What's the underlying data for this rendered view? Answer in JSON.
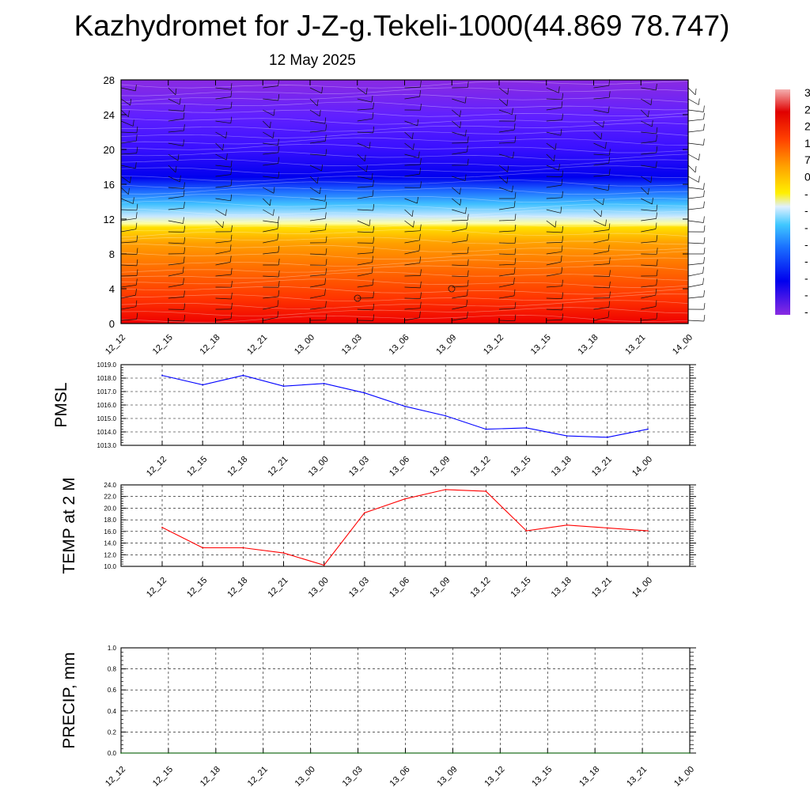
{
  "page": {
    "title": "Kazhydromet for J-Z-g.Tekeli-1000(44.869 78.747)",
    "subtitle": "12 May 2025"
  },
  "chart_data": [
    {
      "type": "heatmap",
      "title": "",
      "x_tick_labels": [
        "12_12",
        "12_15",
        "12_18",
        "12_21",
        "13_00",
        "13_03",
        "13_06",
        "13_09",
        "13_12",
        "13_15",
        "13_18",
        "13_21",
        "14_00"
      ],
      "y_tick_labels": [
        "0",
        "4",
        "8",
        "12",
        "16",
        "20",
        "24",
        "28"
      ],
      "ylim": [
        0,
        28
      ],
      "colorbar_visible_labels": [
        "3",
        "2",
        "2",
        "1",
        "7",
        "0",
        "-",
        "-",
        "-",
        "-",
        "-",
        "-",
        "-",
        "-"
      ],
      "overlay": "wind barbs"
    },
    {
      "type": "line",
      "ylabel": "PMSL",
      "x": [
        "12_12",
        "12_15",
        "12_18",
        "12_21",
        "13_00",
        "13_03",
        "13_06",
        "13_09",
        "13_12",
        "13_15",
        "13_18",
        "13_21",
        "14_00"
      ],
      "values": [
        1018.2,
        1017.5,
        1018.2,
        1017.4,
        1017.6,
        1016.9,
        1015.9,
        1015.2,
        1014.2,
        1014.3,
        1013.7,
        1013.6,
        1014.2
      ],
      "ylim": [
        1013.0,
        1019.0
      ],
      "y_tick_labels": [
        "1013.0",
        "1014.0",
        "1015.0",
        "1016.0",
        "1017.0",
        "1018.0",
        "1019.0"
      ],
      "color": "#0000ff",
      "grid": true
    },
    {
      "type": "line",
      "ylabel": "TEMP at 2 M",
      "x": [
        "12_12",
        "12_15",
        "12_18",
        "12_21",
        "13_00",
        "13_03",
        "13_06",
        "13_09",
        "13_12",
        "13_15",
        "13_18",
        "13_21",
        "14_00"
      ],
      "values": [
        16.7,
        13.2,
        13.2,
        12.3,
        10.2,
        19.2,
        21.6,
        23.2,
        22.9,
        16.1,
        17.1,
        16.6,
        16.1
      ],
      "ylim": [
        10.0,
        24.0
      ],
      "y_tick_labels": [
        "10.0",
        "12.0",
        "14.0",
        "16.0",
        "18.0",
        "20.0",
        "22.0",
        "24.0"
      ],
      "color": "#ff0000",
      "grid": true
    },
    {
      "type": "line",
      "ylabel": "PRECIP, mm",
      "x": [
        "12_12",
        "12_15",
        "12_18",
        "12_21",
        "13_00",
        "13_03",
        "13_06",
        "13_09",
        "13_12",
        "13_15",
        "13_18",
        "13_21",
        "14_00"
      ],
      "values": [
        0,
        0,
        0,
        0,
        0,
        0,
        0,
        0,
        0,
        0,
        0,
        0,
        0
      ],
      "ylim": [
        0.0,
        1.0
      ],
      "y_tick_labels": [
        "0.0",
        "0.2",
        "0.4",
        "0.6",
        "0.8",
        "1.0"
      ],
      "color": "#006400",
      "grid": true
    }
  ]
}
